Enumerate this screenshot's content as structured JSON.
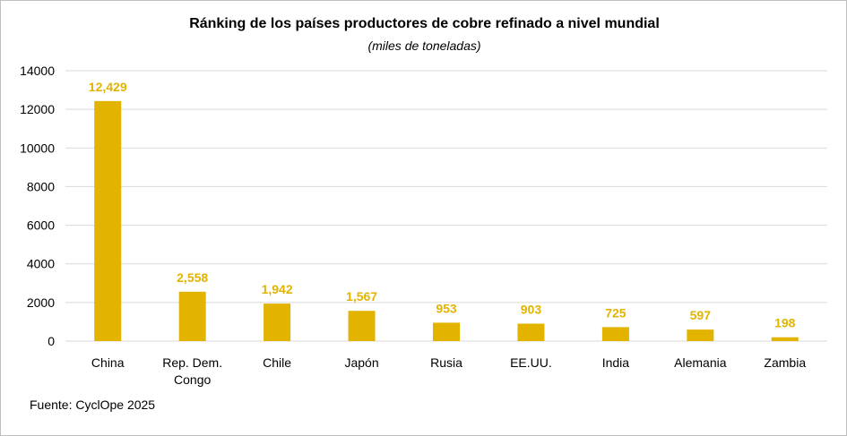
{
  "chart_data": {
    "type": "bar",
    "title": "Ránking de los países productores de cobre refinado a nivel mundial",
    "subtitle": "(miles de toneladas)",
    "categories": [
      [
        "China"
      ],
      [
        "Rep. Dem.",
        "Congo"
      ],
      [
        "Chile"
      ],
      [
        "Japón"
      ],
      [
        "Rusia"
      ],
      [
        "EE.UU."
      ],
      [
        "India"
      ],
      [
        "Alemania"
      ],
      [
        "Zambia"
      ]
    ],
    "values": [
      12429,
      2558,
      1942,
      1567,
      953,
      903,
      725,
      597,
      198
    ],
    "data_labels": [
      "12,429",
      "2,558",
      "1,942",
      "1,567",
      "953",
      "903",
      "725",
      "597",
      "198"
    ],
    "yticks": [
      "0",
      "2000",
      "4000",
      "6000",
      "8000",
      "10000",
      "12000",
      "14000"
    ],
    "ylim": [
      0,
      14000
    ],
    "grid": true,
    "legend": "none",
    "bar_color": "#E2B400",
    "label_color": "#E2B400",
    "grid_color": "#d9d9d9"
  },
  "source": "Fuente: CyclOpe 2025"
}
